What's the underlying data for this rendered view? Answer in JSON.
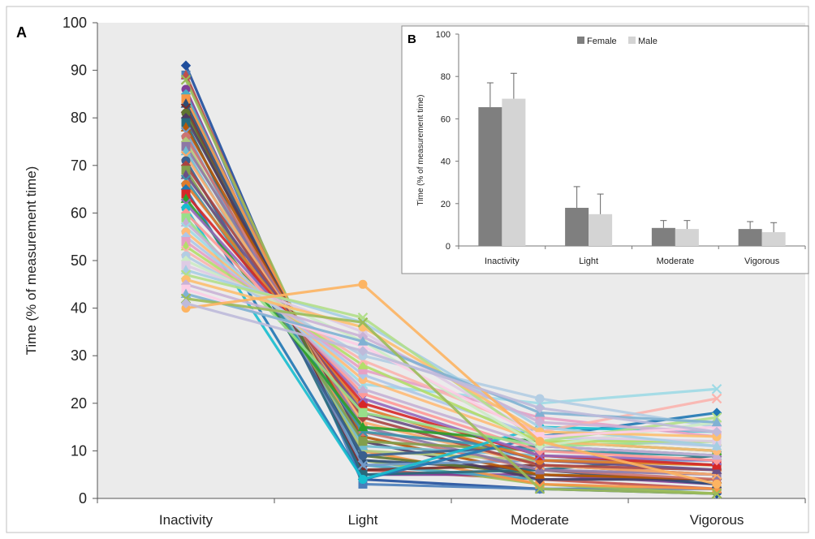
{
  "figure": {
    "panel_a_label": "A",
    "panel_b_label": "B"
  },
  "chart_data": [
    {
      "panel": "A",
      "type": "line",
      "ylabel": "Time (% of measurement time)",
      "categories": [
        "Inactivity",
        "Light",
        "Moderate",
        "Vigorous"
      ],
      "ylim": [
        0,
        100
      ],
      "yticks": [
        0,
        10,
        20,
        30,
        40,
        50,
        60,
        70,
        80,
        90,
        100
      ],
      "grid": false,
      "series": [
        {
          "color": "#1f4e9c",
          "values": [
            91,
            4,
            2,
            1
          ]
        },
        {
          "color": "#4a7ebb",
          "values": [
            89,
            3,
            2,
            2
          ]
        },
        {
          "color": "#c0504d",
          "values": [
            89,
            6,
            4,
            2
          ]
        },
        {
          "color": "#9bbb59",
          "values": [
            88,
            8,
            3,
            1
          ]
        },
        {
          "color": "#7f3f98",
          "values": [
            86,
            5,
            5,
            3
          ]
        },
        {
          "color": "#4bacc6",
          "values": [
            85,
            7,
            4,
            4
          ]
        },
        {
          "color": "#f79646",
          "values": [
            84,
            10,
            3,
            2
          ]
        },
        {
          "color": "#2c4d75",
          "values": [
            83,
            8,
            6,
            3
          ]
        },
        {
          "color": "#772c2a",
          "values": [
            82,
            6,
            7,
            5
          ]
        },
        {
          "color": "#5f7530",
          "values": [
            81,
            9,
            5,
            4
          ]
        },
        {
          "color": "#4d3b62",
          "values": [
            80,
            12,
            4,
            4
          ]
        },
        {
          "color": "#276a7c",
          "values": [
            79,
            5,
            6,
            9
          ]
        },
        {
          "color": "#b65708",
          "values": [
            78,
            13,
            5,
            4
          ]
        },
        {
          "color": "#729aca",
          "values": [
            77,
            7,
            8,
            8
          ]
        },
        {
          "color": "#cd7371",
          "values": [
            76,
            14,
            6,
            4
          ]
        },
        {
          "color": "#afc97a",
          "values": [
            75,
            10,
            8,
            7
          ]
        },
        {
          "color": "#8d78a5",
          "values": [
            74,
            15,
            6,
            5
          ]
        },
        {
          "color": "#6fbdd1",
          "values": [
            73,
            11,
            9,
            7
          ]
        },
        {
          "color": "#f9ab6b",
          "values": [
            72,
            16,
            7,
            5
          ]
        },
        {
          "color": "#3a5f8e",
          "values": [
            71,
            9,
            11,
            9
          ]
        },
        {
          "color": "#a94441",
          "values": [
            70,
            17,
            7,
            6
          ]
        },
        {
          "color": "#829f4d",
          "values": [
            69,
            12,
            10,
            9
          ]
        },
        {
          "color": "#6a5086",
          "values": [
            68,
            18,
            8,
            6
          ]
        },
        {
          "color": "#3b93ab",
          "values": [
            67,
            14,
            10,
            9
          ]
        },
        {
          "color": "#e07b2b",
          "values": [
            66,
            19,
            8,
            7
          ]
        },
        {
          "color": "#1f77b4",
          "values": [
            65,
            4,
            13,
            18
          ]
        },
        {
          "color": "#d62728",
          "values": [
            64,
            20,
            9,
            7
          ]
        },
        {
          "color": "#2ca02c",
          "values": [
            63,
            15,
            12,
            10
          ]
        },
        {
          "color": "#9467bd",
          "values": [
            62,
            21,
            9,
            8
          ]
        },
        {
          "color": "#17becf",
          "values": [
            61,
            4,
            15,
            14
          ]
        },
        {
          "color": "#ff9896",
          "values": [
            60,
            22,
            10,
            8
          ]
        },
        {
          "color": "#98df8a",
          "values": [
            59,
            18,
            11,
            12
          ]
        },
        {
          "color": "#c5b0d5",
          "values": [
            58,
            23,
            11,
            9
          ]
        },
        {
          "color": "#9edae5",
          "values": [
            57,
            24,
            20,
            23
          ]
        },
        {
          "color": "#ffbb78",
          "values": [
            56,
            25,
            12,
            10
          ]
        },
        {
          "color": "#aec7e8",
          "values": [
            55,
            26,
            13,
            11
          ]
        },
        {
          "color": "#e6a0c4",
          "values": [
            54,
            27,
            17,
            13
          ]
        },
        {
          "color": "#b3de69",
          "values": [
            53,
            28,
            12,
            12
          ]
        },
        {
          "color": "#fbb4ae",
          "values": [
            52,
            29,
            14,
            21
          ]
        },
        {
          "color": "#b3cde3",
          "values": [
            51,
            30,
            21,
            15
          ]
        },
        {
          "color": "#ccebc5",
          "values": [
            50,
            33,
            11,
            16
          ]
        },
        {
          "color": "#decbe4",
          "values": [
            49,
            35,
            13,
            12
          ]
        },
        {
          "color": "#a6cee3",
          "values": [
            48,
            37,
            15,
            11
          ]
        },
        {
          "color": "#b2df8a",
          "values": [
            47,
            38,
            12,
            17
          ]
        },
        {
          "color": "#fdbf6f",
          "values": [
            46,
            36,
            14,
            13
          ]
        },
        {
          "color": "#cab2d6",
          "values": [
            45,
            34,
            16,
            14
          ]
        },
        {
          "color": "#fccde5",
          "values": [
            44,
            32,
            13,
            15
          ]
        },
        {
          "color": "#80b1d3",
          "values": [
            43,
            33,
            18,
            16
          ]
        },
        {
          "color": "#9bbb59",
          "values": [
            42,
            37,
            2,
            1
          ]
        },
        {
          "color": "#fdb462",
          "values": [
            40,
            45,
            12,
            3
          ]
        },
        {
          "color": "#bebada",
          "values": [
            41,
            31,
            19,
            14
          ]
        }
      ]
    },
    {
      "panel": "B",
      "type": "bar",
      "ylabel": "Time (% of measurement time)",
      "categories": [
        "Inactivity",
        "Light",
        "Moderate",
        "Vigorous"
      ],
      "ylim": [
        0,
        100
      ],
      "yticks": [
        0,
        20,
        40,
        60,
        80,
        100
      ],
      "legend_position": "top",
      "colors": {
        "female": "#7f7f7f",
        "male": "#d4d4d4"
      },
      "series": [
        {
          "name": "Female",
          "values": [
            65.5,
            18,
            8.5,
            8
          ],
          "error": [
            11.5,
            10,
            3.5,
            3.5
          ]
        },
        {
          "name": "Male",
          "values": [
            69.5,
            15,
            8,
            6.5
          ],
          "error": [
            12,
            9.5,
            4,
            4.5
          ]
        }
      ]
    }
  ]
}
